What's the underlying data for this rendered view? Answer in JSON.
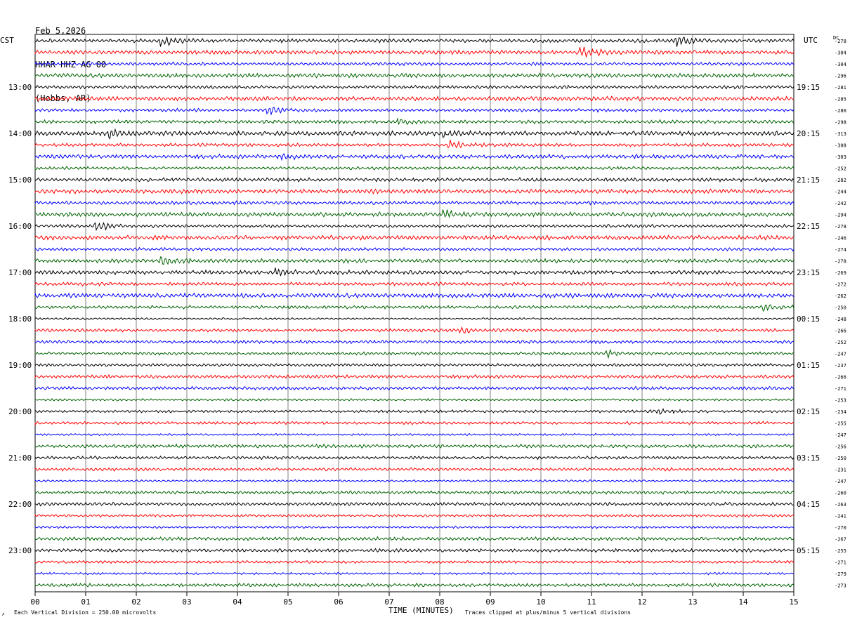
{
  "header": {
    "date": "Feb 5,2026",
    "station": "HHAR HHZ AG 00",
    "location": "(Hobbs, AR)"
  },
  "left_timezone": "CST",
  "right_timezone": "UTC",
  "dc_header": "DC",
  "footer": {
    "corner_mark": "↗",
    "scale_note": "Each Vertical Division =  250.00 microvolts",
    "clip_note": "Traces clipped at plus/minus 5 vertical divisions"
  },
  "colors": {
    "trace_cycle": [
      "#000000",
      "#ff0000",
      "#0000ff",
      "#006400"
    ],
    "grid": "#808080"
  },
  "chart_data": {
    "type": "line",
    "xlabel": "TIME (MINUTES)",
    "xlim": [
      0,
      15
    ],
    "x_ticks": [
      "00",
      "01",
      "02",
      "03",
      "04",
      "05",
      "06",
      "07",
      "08",
      "09",
      "10",
      "11",
      "12",
      "13",
      "14",
      "15"
    ],
    "trace_interval_minutes": 15,
    "left_hour_labels": [
      "13:00",
      "14:00",
      "15:00",
      "16:00",
      "17:00",
      "18:00",
      "19:00",
      "20:00",
      "21:00",
      "22:00",
      "23:00"
    ],
    "right_hour_labels": [
      "19:15",
      "20:15",
      "21:15",
      "22:15",
      "23:15",
      "00:15",
      "01:15",
      "02:15",
      "03:15",
      "04:15",
      "05:15"
    ],
    "dc_offsets": [
      "278",
      "304",
      "304",
      "296",
      "281",
      "285",
      "280",
      "298",
      "313",
      "308",
      "303",
      "252",
      "282",
      "244",
      "242",
      "294",
      "278",
      "246",
      "274",
      "278",
      "269",
      "272",
      "262",
      "250",
      "248",
      "266",
      "252",
      "247",
      "237",
      "266",
      "271",
      "253",
      "234",
      "255",
      "247",
      "256",
      "250",
      "231",
      "247",
      "260",
      "263",
      "241",
      "270",
      "267",
      "255",
      "271",
      "279",
      "273"
    ],
    "events": [
      {
        "trace": 0,
        "minute": 2.5,
        "amp": 3.2
      },
      {
        "trace": 0,
        "minute": 12.7,
        "amp": 2.2
      },
      {
        "trace": 1,
        "minute": 10.8,
        "amp": 3.0
      },
      {
        "trace": 6,
        "minute": 4.6,
        "amp": 1.8
      },
      {
        "trace": 7,
        "minute": 7.2,
        "amp": 1.6
      },
      {
        "trace": 8,
        "minute": 1.5,
        "amp": 1.6
      },
      {
        "trace": 8,
        "minute": 8.1,
        "amp": 1.5
      },
      {
        "trace": 9,
        "minute": 8.2,
        "amp": 1.7
      },
      {
        "trace": 10,
        "minute": 4.8,
        "amp": 1.6
      },
      {
        "trace": 15,
        "minute": 8.1,
        "amp": 1.7
      },
      {
        "trace": 16,
        "minute": 1.2,
        "amp": 2.0
      },
      {
        "trace": 19,
        "minute": 2.5,
        "amp": 2.0
      },
      {
        "trace": 20,
        "minute": 4.8,
        "amp": 1.8
      },
      {
        "trace": 23,
        "minute": 14.4,
        "amp": 1.8
      },
      {
        "trace": 25,
        "minute": 8.4,
        "amp": 1.4
      },
      {
        "trace": 27,
        "minute": 11.3,
        "amp": 1.5
      },
      {
        "trace": 32,
        "minute": 12.2,
        "amp": 1.5
      }
    ]
  }
}
